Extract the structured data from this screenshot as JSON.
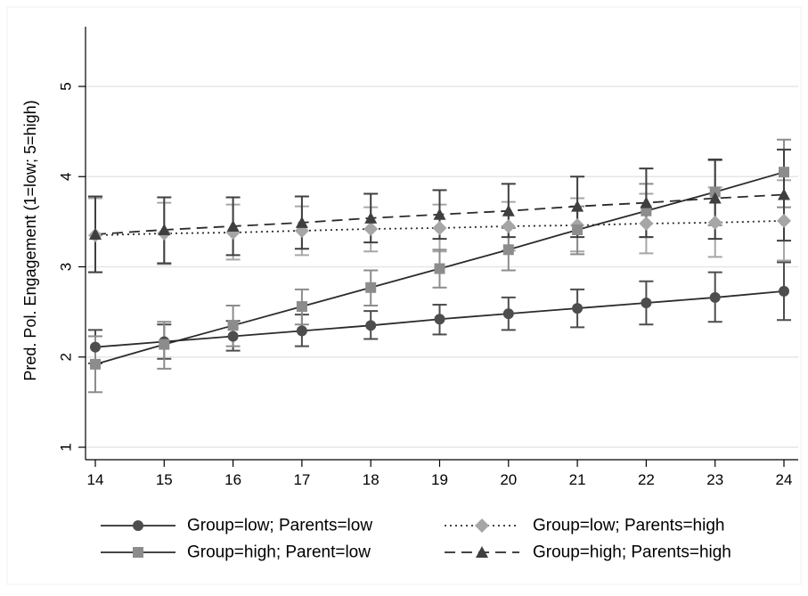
{
  "chart_data": {
    "type": "line",
    "title": "",
    "xlabel": "",
    "ylabel": "Pred. Pol. Engagement (1=low; 5=high)",
    "xlim": [
      14,
      24
    ],
    "ylim": [
      1,
      5
    ],
    "x": [
      14,
      15,
      16,
      17,
      18,
      19,
      20,
      21,
      22,
      23,
      24
    ],
    "xticks": [
      "14",
      "15",
      "16",
      "17",
      "18",
      "19",
      "20",
      "21",
      "22",
      "23",
      "24"
    ],
    "yticks": [
      "1",
      "2",
      "3",
      "4",
      "5"
    ],
    "grid": true,
    "legend_position": "bottom",
    "series": [
      {
        "name": "Group=low; Parents=low",
        "marker": "circle",
        "line": "solid",
        "color": "#4d4d4d",
        "values": [
          2.11,
          2.17,
          2.23,
          2.29,
          2.35,
          2.42,
          2.48,
          2.54,
          2.6,
          2.66,
          2.73
        ],
        "lower": [
          1.93,
          1.98,
          2.07,
          2.12,
          2.2,
          2.25,
          2.3,
          2.33,
          2.36,
          2.39,
          2.41
        ],
        "upper": [
          2.3,
          2.36,
          2.4,
          2.47,
          2.51,
          2.58,
          2.66,
          2.75,
          2.84,
          2.94,
          3.05
        ]
      },
      {
        "name": "Group=low; Parents=high",
        "marker": "diamond",
        "line": "dotted",
        "color": "#a6a6a6",
        "values": [
          3.35,
          3.37,
          3.38,
          3.4,
          3.42,
          3.43,
          3.45,
          3.46,
          3.48,
          3.49,
          3.51
        ],
        "lower": [
          2.94,
          3.03,
          3.08,
          3.13,
          3.17,
          3.17,
          3.18,
          3.17,
          3.15,
          3.11,
          3.07
        ],
        "upper": [
          3.76,
          3.71,
          3.69,
          3.67,
          3.66,
          3.69,
          3.72,
          3.76,
          3.81,
          3.88,
          3.96
        ]
      },
      {
        "name": "Group=high; Parent=low",
        "marker": "square",
        "line": "solid",
        "color": "#8c8c8c",
        "values": [
          1.92,
          2.14,
          2.35,
          2.56,
          2.77,
          2.98,
          3.19,
          3.41,
          3.62,
          3.83,
          4.05
        ],
        "lower": [
          1.61,
          1.87,
          2.12,
          2.36,
          2.57,
          2.77,
          2.96,
          3.14,
          3.33,
          3.46,
          3.66
        ],
        "upper": [
          2.23,
          2.39,
          2.57,
          2.75,
          2.96,
          3.19,
          3.43,
          3.67,
          3.92,
          4.18,
          4.41
        ]
      },
      {
        "name": "Group=high; Parents=high",
        "marker": "triangle",
        "line": "dashed",
        "color": "#3f3f3f",
        "values": [
          3.36,
          3.41,
          3.45,
          3.49,
          3.54,
          3.58,
          3.62,
          3.67,
          3.71,
          3.76,
          3.8
        ],
        "lower": [
          2.94,
          3.04,
          3.13,
          3.2,
          3.27,
          3.31,
          3.33,
          3.33,
          3.33,
          3.31,
          3.29
        ],
        "upper": [
          3.78,
          3.77,
          3.77,
          3.78,
          3.81,
          3.85,
          3.92,
          4.0,
          4.09,
          4.19,
          4.3
        ]
      }
    ]
  }
}
